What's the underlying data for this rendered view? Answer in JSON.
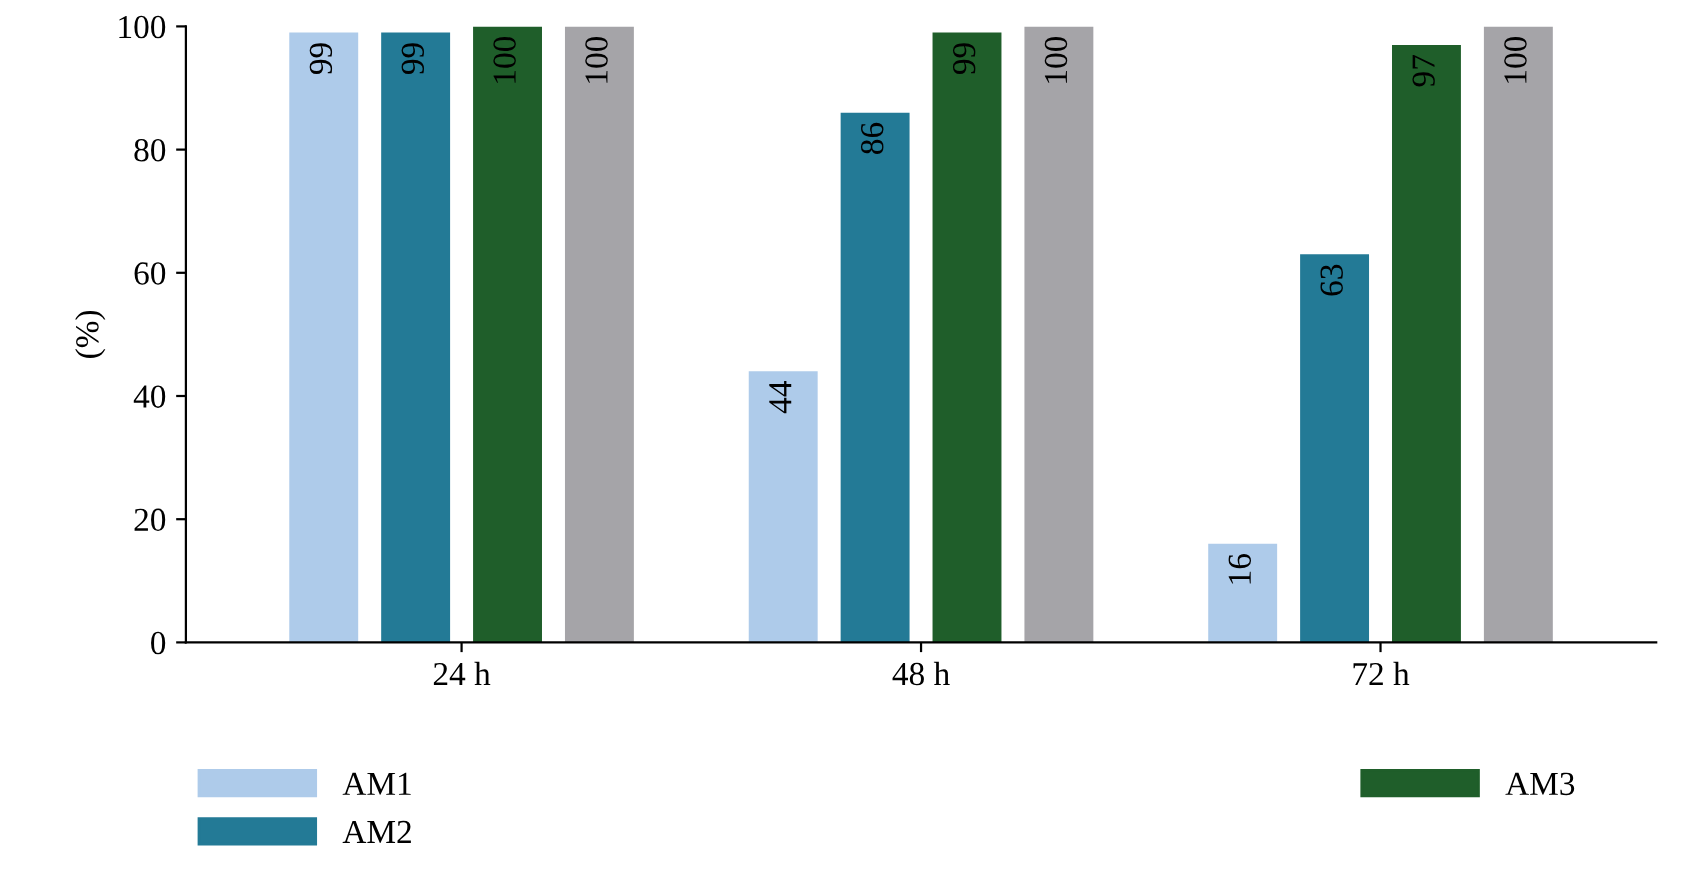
{
  "chart_data": {
    "type": "bar",
    "ylabel": "(%)",
    "categories": [
      "24 h",
      "48 h",
      "72 h"
    ],
    "series": [
      {
        "name": "AM1",
        "color": "#aecbea",
        "values": [
          99,
          44,
          16
        ]
      },
      {
        "name": "AM2",
        "color": "#237a96",
        "values": [
          99,
          86,
          63
        ]
      },
      {
        "name": "AM3",
        "color": "#1f5e2a",
        "values": [
          100,
          99,
          97
        ]
      },
      {
        "color": "#a5a4a8",
        "values": [
          100,
          100,
          100
        ]
      }
    ],
    "ylim": [
      0,
      100
    ],
    "yticks": [
      0,
      20,
      40,
      60,
      80,
      100
    ],
    "data_labels": true,
    "grid": false,
    "legend": "bottom"
  }
}
